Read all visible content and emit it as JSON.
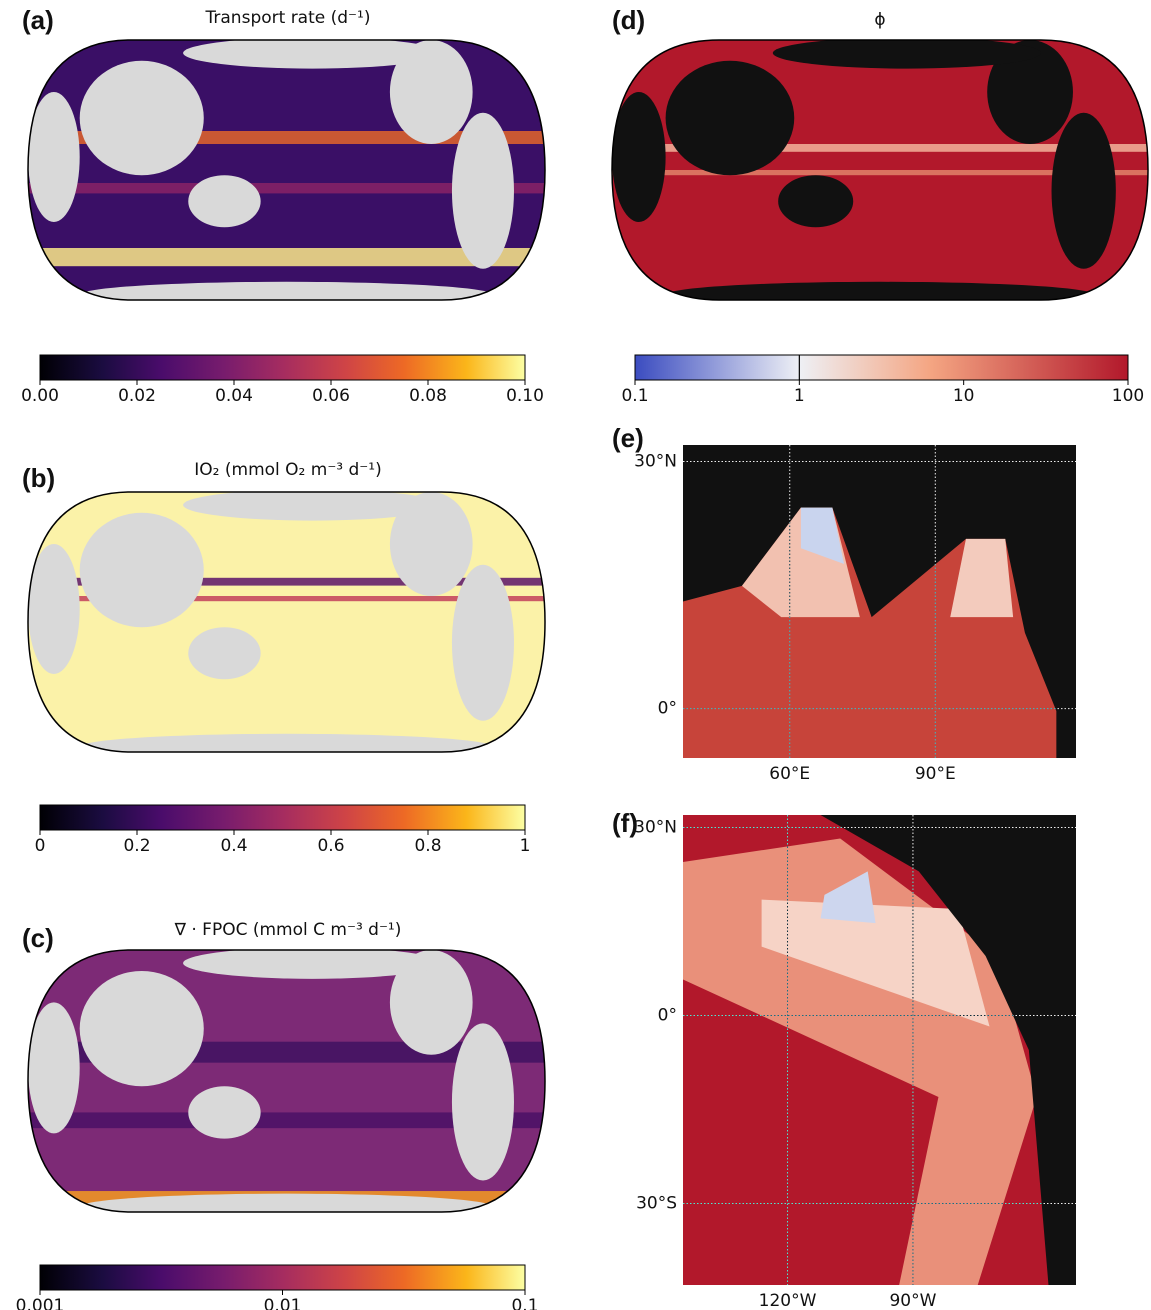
{
  "panels": [
    {
      "label": "(a)",
      "title": "Transport rate (d⁻¹)",
      "colorbar": {
        "scale": "linear",
        "lim": [
          0,
          0.1
        ],
        "ticks": [
          {
            "value": 0,
            "label": "0.00"
          },
          0.02,
          0.04,
          0.06,
          0.08,
          {
            "value": 0.1,
            "label": "0.10"
          }
        ],
        "colormap": "inferno"
      }
    },
    {
      "label": "(b)",
      "title": "IO₂ (mmol O₂ m⁻³ d⁻¹)",
      "colorbar": {
        "scale": "linear",
        "lim": [
          0,
          1
        ],
        "ticks": [
          0,
          0.2,
          0.4,
          0.6,
          0.8,
          1
        ],
        "colormap": "inferno"
      }
    },
    {
      "label": "(c)",
      "title": "∇ · FPOC (mmol C m⁻³ d⁻¹)",
      "colorbar": {
        "scale": "log",
        "lim": [
          0.001,
          0.1
        ],
        "ticks": [
          0.001,
          0.01,
          0.1
        ],
        "colormap": "inferno"
      }
    },
    {
      "label": "(d)",
      "title": "ϕ",
      "colorbar": {
        "scale": "log",
        "lim": [
          0.1,
          100
        ],
        "ticks": [
          0.1,
          1,
          10,
          100
        ],
        "colormap": "coolwarm",
        "contour_levels": [
          1
        ]
      }
    },
    {
      "label": "(e)",
      "xlim": [
        38,
        119
      ],
      "ylim": [
        -6,
        32
      ],
      "xticks": [
        {
          "value": 60,
          "label": "60°E"
        },
        {
          "value": 90,
          "label": "90°E"
        }
      ],
      "yticks": [
        {
          "value": 30,
          "label": "30°N"
        },
        {
          "value": 0,
          "label": "0°"
        }
      ]
    },
    {
      "label": "(f)",
      "xlim": [
        -145,
        -51
      ],
      "ylim": [
        -43,
        32
      ],
      "xticks": [
        {
          "value": -120,
          "label": "120°W"
        },
        {
          "value": -90,
          "label": "90°W"
        }
      ],
      "yticks": [
        {
          "value": 30,
          "label": "30°N"
        },
        {
          "value": 0,
          "label": "0°"
        },
        {
          "value": -30,
          "label": "30°S"
        }
      ]
    }
  ]
}
